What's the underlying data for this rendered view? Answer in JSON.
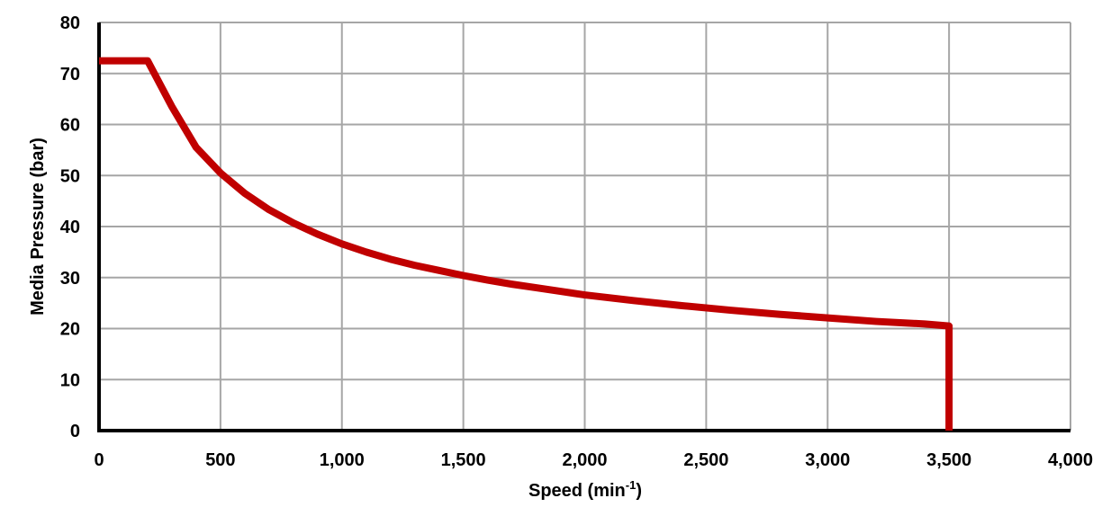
{
  "chart_data": {
    "type": "line",
    "title": "",
    "xlabel": "Speed (min-1)",
    "xlabel_main": "Speed (min",
    "xlabel_sup": "-1",
    "xlabel_close": ")",
    "ylabel": "Media Pressure (bar)",
    "xlim": [
      0,
      4000
    ],
    "ylim": [
      0,
      80
    ],
    "grid": true,
    "legend": null,
    "x_ticks": [
      "0",
      "500",
      "1,000",
      "1,500",
      "2,000",
      "2,500",
      "3,000",
      "3,500",
      "4,000"
    ],
    "y_ticks": [
      "0",
      "10",
      "20",
      "30",
      "40",
      "50",
      "60",
      "70",
      "80"
    ],
    "series": [
      {
        "name": "Media Pressure",
        "color": "#C00000",
        "x": [
          0,
          200,
          300,
          400,
          500,
          600,
          700,
          800,
          900,
          1000,
          1100,
          1200,
          1300,
          1400,
          1500,
          1600,
          1700,
          1800,
          1900,
          2000,
          2200,
          2400,
          2600,
          2800,
          3000,
          3200,
          3400,
          3500,
          3500
        ],
        "y": [
          72.5,
          72.5,
          63.5,
          55.5,
          50.5,
          46.5,
          43.3,
          40.7,
          38.5,
          36.6,
          35.0,
          33.6,
          32.4,
          31.4,
          30.4,
          29.5,
          28.7,
          28.0,
          27.3,
          26.6,
          25.5,
          24.5,
          23.6,
          22.8,
          22.1,
          21.4,
          20.9,
          20.5,
          0
        ]
      }
    ]
  }
}
